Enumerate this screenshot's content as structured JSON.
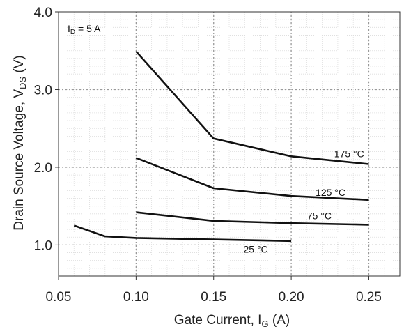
{
  "chart_data": {
    "type": "line",
    "title": "",
    "xlabel": {
      "main": "Gate Current, I",
      "sub": "G",
      "tail": " (A)"
    },
    "ylabel": {
      "main": "Drain Source Voltage, V",
      "sub": "DS",
      "tail": " (V)"
    },
    "xlim": [
      0.05,
      0.27
    ],
    "ylim": [
      0.6,
      4.0
    ],
    "x_ticks": [
      {
        "value": 0.05,
        "label": "0.05"
      },
      {
        "value": 0.1,
        "label": "0.10"
      },
      {
        "value": 0.15,
        "label": "0.15"
      },
      {
        "value": 0.2,
        "label": "0.20"
      },
      {
        "value": 0.25,
        "label": "0.25"
      }
    ],
    "y_ticks": [
      {
        "value": 1.0,
        "label": "1.0"
      },
      {
        "value": 2.0,
        "label": "2.0"
      },
      {
        "value": 3.0,
        "label": "3.0"
      },
      {
        "value": 4.0,
        "label": "4.0"
      }
    ],
    "grid": true,
    "annotation": {
      "main": "I",
      "sub": "D",
      "tail": " = 5 A"
    },
    "series": [
      {
        "name": "175 °C",
        "x": [
          0.1,
          0.15,
          0.2,
          0.25
        ],
        "y": [
          3.49,
          2.37,
          2.14,
          2.04
        ]
      },
      {
        "name": "125 °C",
        "x": [
          0.1,
          0.15,
          0.2,
          0.25
        ],
        "y": [
          2.12,
          1.73,
          1.63,
          1.58
        ]
      },
      {
        "name": "75 °C",
        "x": [
          0.1,
          0.15,
          0.2,
          0.25
        ],
        "y": [
          1.42,
          1.31,
          1.28,
          1.26
        ]
      },
      {
        "name": "25 °C",
        "x": [
          0.06,
          0.08,
          0.1,
          0.15,
          0.2
        ],
        "y": [
          1.25,
          1.11,
          1.09,
          1.07,
          1.05
        ]
      }
    ],
    "line_color": "#111111",
    "grid_color": "#9a9a9a"
  }
}
